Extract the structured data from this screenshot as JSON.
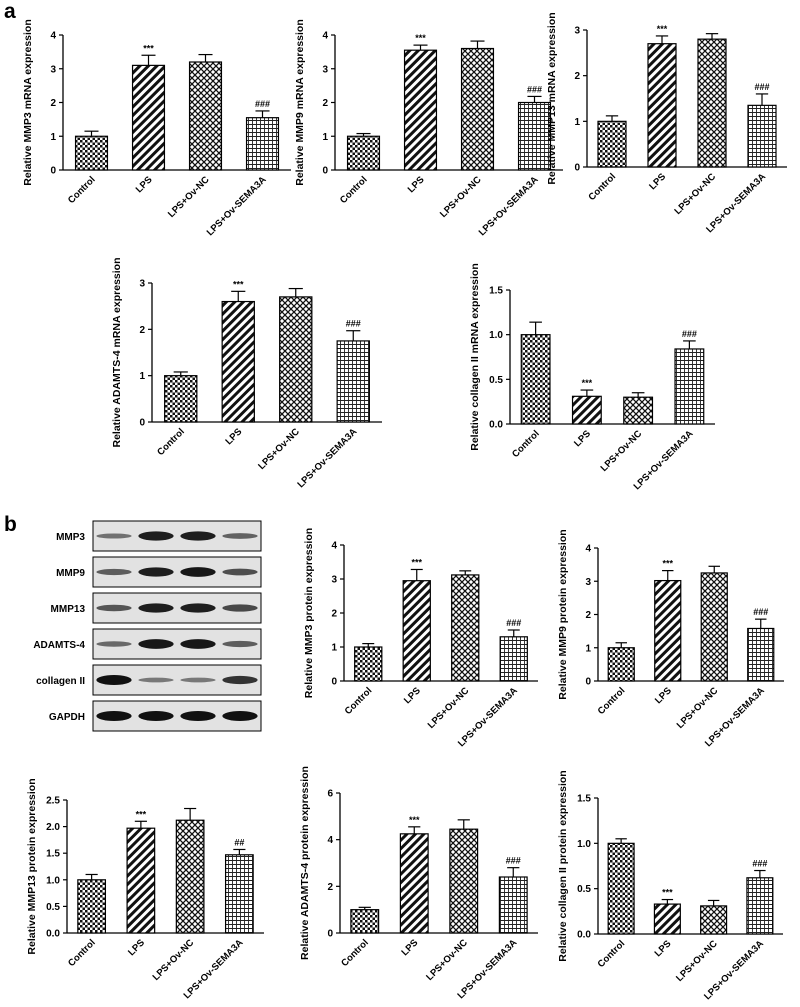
{
  "panel_labels": [
    "a",
    "b"
  ],
  "western_blot": {
    "rows": [
      {
        "label": "MMP3",
        "intensities": [
          0.3,
          0.9,
          0.9,
          0.4
        ]
      },
      {
        "label": "MMP9",
        "intensities": [
          0.45,
          0.9,
          0.95,
          0.55
        ]
      },
      {
        "label": "MMP13",
        "intensities": [
          0.5,
          0.9,
          0.9,
          0.6
        ]
      },
      {
        "label": "ADAMTS-4",
        "intensities": [
          0.35,
          0.95,
          0.95,
          0.45
        ]
      },
      {
        "label": "collagen II",
        "intensities": [
          1.0,
          0.25,
          0.25,
          0.75
        ]
      },
      {
        "label": "GAPDH",
        "intensities": [
          1.0,
          1.0,
          1.0,
          1.0
        ]
      }
    ]
  },
  "colors": {
    "bar_fill": "#ffffff",
    "bar_stroke": "#000000",
    "pattern": "#000000",
    "blot_bg": "#e2e2e2",
    "band": "#111111"
  },
  "chart_data": [
    {
      "type": "bar",
      "ylabel": "Relative MMP3 mRNA expression",
      "categories": [
        "Control",
        "LPS",
        "LPS+Ov-NC",
        "LPS+Ov-SEMA3A"
      ],
      "values": [
        1.0,
        3.1,
        3.2,
        1.55
      ],
      "errors": [
        0.15,
        0.3,
        0.22,
        0.2
      ],
      "annotations": [
        "",
        "***",
        "",
        "###"
      ],
      "ylim": [
        0,
        4
      ],
      "yticks": [
        "0",
        "1",
        "2",
        "3",
        "4"
      ]
    },
    {
      "type": "bar",
      "ylabel": "Relative MMP9 mRNA expression",
      "categories": [
        "Control",
        "LPS",
        "LPS+Ov-NC",
        "LPS+Ov-SEMA3A"
      ],
      "values": [
        1.0,
        3.55,
        3.6,
        2.0
      ],
      "errors": [
        0.08,
        0.15,
        0.22,
        0.18
      ],
      "annotations": [
        "",
        "***",
        "",
        "###"
      ],
      "ylim": [
        0,
        4
      ],
      "yticks": [
        "0",
        "1",
        "2",
        "3",
        "4"
      ]
    },
    {
      "type": "bar",
      "ylabel": "Relative MMP13 mRNA expression",
      "categories": [
        "Control",
        "LPS",
        "LPS+Ov-NC",
        "LPS+Ov-SEMA3A"
      ],
      "values": [
        1.0,
        2.7,
        2.8,
        1.35
      ],
      "errors": [
        0.12,
        0.17,
        0.12,
        0.25
      ],
      "annotations": [
        "",
        "***",
        "",
        "###"
      ],
      "ylim": [
        0,
        3
      ],
      "yticks": [
        "0",
        "1",
        "2",
        "3"
      ]
    },
    {
      "type": "bar",
      "ylabel": "Relative ADAMTS-4 mRNA expression",
      "categories": [
        "Control",
        "LPS",
        "LPS+Ov-NC",
        "LPS+Ov-SEMA3A"
      ],
      "values": [
        1.0,
        2.6,
        2.7,
        1.75
      ],
      "errors": [
        0.08,
        0.22,
        0.18,
        0.22
      ],
      "annotations": [
        "",
        "***",
        "",
        "###"
      ],
      "ylim": [
        0,
        3
      ],
      "yticks": [
        "0",
        "1",
        "2",
        "3"
      ]
    },
    {
      "type": "bar",
      "ylabel": "Relative collagen II mRNA expression",
      "categories": [
        "Control",
        "LPS",
        "LPS+Ov-NC",
        "LPS+Ov-SEMA3A"
      ],
      "values": [
        1.0,
        0.31,
        0.3,
        0.84
      ],
      "errors": [
        0.14,
        0.07,
        0.05,
        0.09
      ],
      "annotations": [
        "",
        "***",
        "",
        "###"
      ],
      "ylim": [
        0,
        1.5
      ],
      "yticks": [
        "0.0",
        "0.5",
        "1.0",
        "1.5"
      ]
    },
    {
      "type": "bar",
      "ylabel": "Relative MMP3 protein expression",
      "categories": [
        "Control",
        "LPS",
        "LPS+Ov-NC",
        "LPS+Ov-SEMA3A"
      ],
      "values": [
        1.0,
        2.95,
        3.12,
        1.3
      ],
      "errors": [
        0.1,
        0.33,
        0.12,
        0.2
      ],
      "annotations": [
        "",
        "***",
        "",
        "###"
      ],
      "ylim": [
        0,
        4
      ],
      "yticks": [
        "0",
        "1",
        "2",
        "3",
        "4"
      ]
    },
    {
      "type": "bar",
      "ylabel": "Relative MMP9 protein expression",
      "categories": [
        "Control",
        "LPS",
        "LPS+Ov-NC",
        "LPS+Ov-SEMA3A"
      ],
      "values": [
        1.0,
        3.02,
        3.25,
        1.58
      ],
      "errors": [
        0.15,
        0.3,
        0.2,
        0.28
      ],
      "annotations": [
        "",
        "***",
        "",
        "###"
      ],
      "ylim": [
        0,
        4
      ],
      "yticks": [
        "0",
        "1",
        "2",
        "3",
        "4"
      ]
    },
    {
      "type": "bar",
      "ylabel": "Relative MMP13 protein expression",
      "categories": [
        "Control",
        "LPS",
        "LPS+Ov-NC",
        "LPS+Ov-SEMA3A"
      ],
      "values": [
        1.0,
        1.97,
        2.12,
        1.47
      ],
      "errors": [
        0.1,
        0.13,
        0.22,
        0.1
      ],
      "annotations": [
        "",
        "***",
        "",
        "##"
      ],
      "ylim": [
        0,
        2.5
      ],
      "yticks": [
        "0.0",
        "0.5",
        "1.0",
        "1.5",
        "2.0",
        "2.5"
      ]
    },
    {
      "type": "bar",
      "ylabel": "Relative ADAMTS-4 protein expression",
      "categories": [
        "Control",
        "LPS",
        "LPS+Ov-NC",
        "LPS+Ov-SEMA3A"
      ],
      "values": [
        1.0,
        4.25,
        4.45,
        2.4
      ],
      "errors": [
        0.1,
        0.3,
        0.4,
        0.4
      ],
      "annotations": [
        "",
        "***",
        "",
        "###"
      ],
      "ylim": [
        0,
        6
      ],
      "yticks": [
        "0",
        "2",
        "4",
        "6"
      ]
    },
    {
      "type": "bar",
      "ylabel": "Relative collagen II protein expression",
      "categories": [
        "Control",
        "LPS",
        "LPS+Ov-NC",
        "LPS+Ov-SEMA3A"
      ],
      "values": [
        1.0,
        0.33,
        0.31,
        0.62
      ],
      "errors": [
        0.05,
        0.05,
        0.06,
        0.08
      ],
      "annotations": [
        "",
        "***",
        "",
        "###"
      ],
      "ylim": [
        0,
        1.5
      ],
      "yticks": [
        "0.0",
        "0.5",
        "1.0",
        "1.5"
      ]
    }
  ]
}
